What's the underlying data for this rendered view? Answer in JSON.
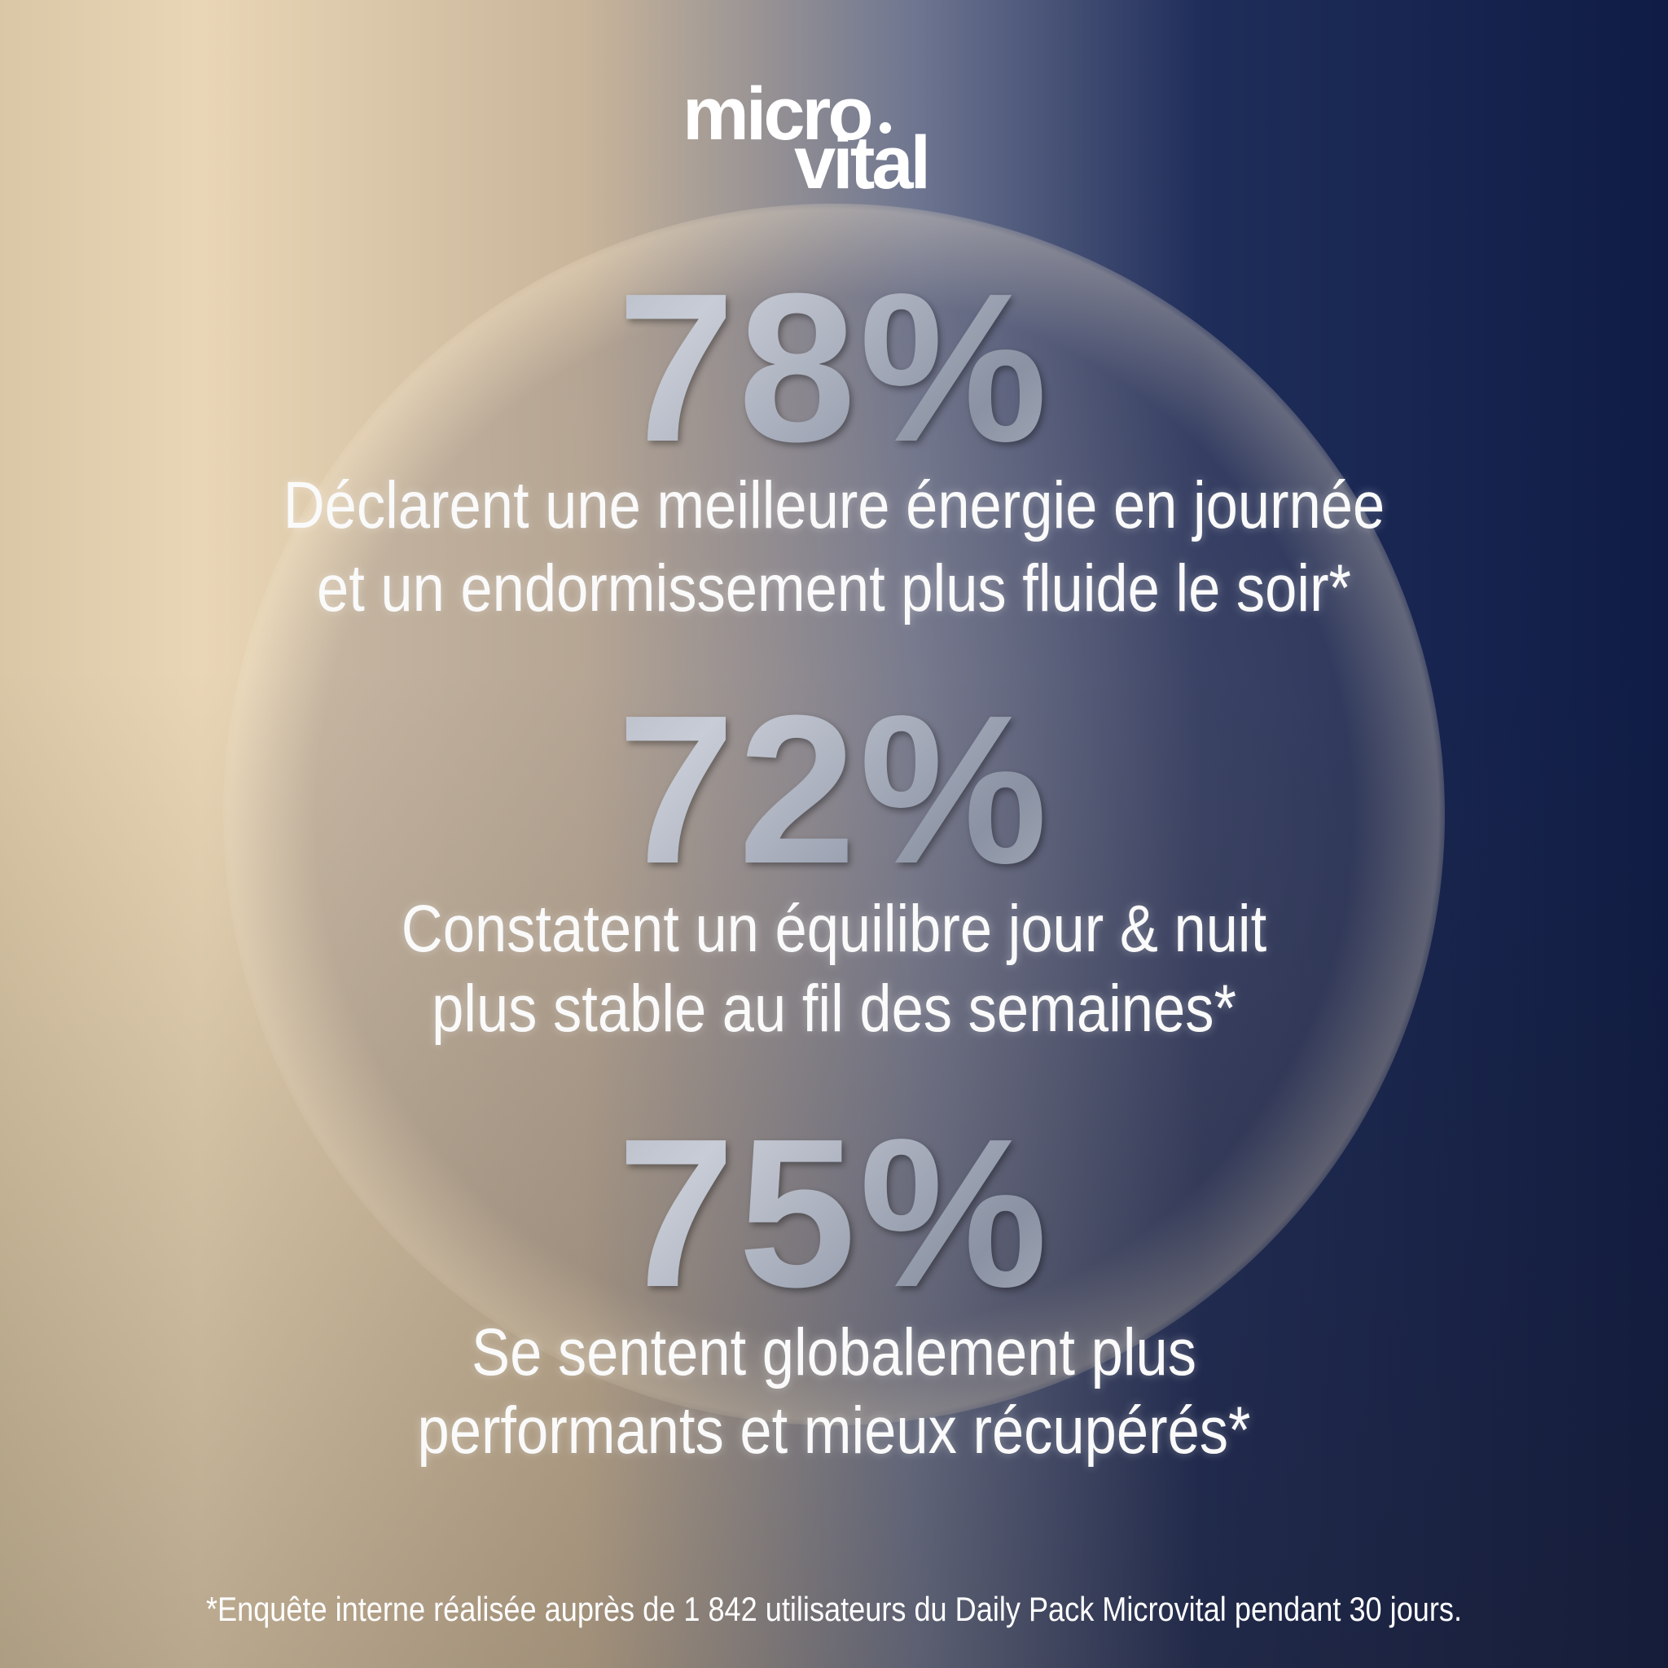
{
  "logo": {
    "line1": "micro",
    "line2": "vital"
  },
  "stats": [
    {
      "figure": "78%",
      "lines": [
        "Déclarent une meilleure énergie en journée",
        "et un endormissement plus fluide le soir*"
      ]
    },
    {
      "figure": "72%",
      "lines": [
        "Constatent un équilibre jour & nuit",
        "plus stable au fil des semaines*"
      ]
    },
    {
      "figure": "75%",
      "lines": [
        "Se sentent globalement plus",
        "performants et mieux récupérés*"
      ]
    }
  ],
  "footnote": "*Enquête interne réalisée auprès de 1 842 utilisateurs du Daily Pack Microvital pendant 30 jours."
}
